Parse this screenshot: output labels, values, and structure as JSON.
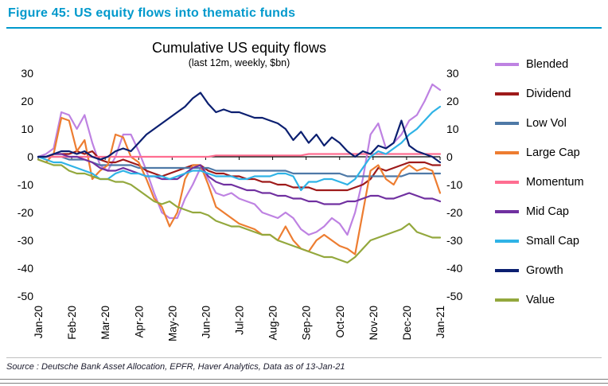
{
  "header": {
    "title": "Figure 45: US equity flows into thematic funds",
    "accent_color": "#0099CC"
  },
  "chart_data": {
    "type": "line",
    "title": "Cumulative US equity flows",
    "subtitle": "(last 12m, weekly, $bn)",
    "ylim": [
      -50,
      30
    ],
    "y_ticks": [
      30,
      20,
      10,
      0,
      -10,
      -20,
      -30,
      -40,
      -50
    ],
    "x_tick_labels": [
      "Jan-20",
      "Feb-20",
      "Mar-20",
      "Apr-20",
      "May-20",
      "Jun-20",
      "Jul-20",
      "Aug-20",
      "Sep-20",
      "Oct-20",
      "Nov-20",
      "Dec-20",
      "Jan-21"
    ],
    "x_weeks": 52,
    "grid": false,
    "legend_position": "right",
    "zero_line_color": "#000000",
    "series": [
      {
        "name": "Blended",
        "color": "#BE82E2",
        "values": [
          0,
          1,
          3,
          16,
          15,
          10,
          15,
          5,
          -3,
          -5,
          0,
          8,
          8,
          2,
          -5,
          -13,
          -20,
          -22,
          -22,
          -15,
          -10,
          -4,
          -8,
          -13,
          -14,
          -13,
          -15,
          -16,
          -17,
          -20,
          -21,
          -22,
          -20,
          -22,
          -26,
          -28,
          -27,
          -25,
          -22,
          -24,
          -28,
          -20,
          -8,
          8,
          12,
          3,
          5,
          8,
          13,
          15,
          20,
          26,
          24
        ]
      },
      {
        "name": "Dividend",
        "color": "#9E1A1A",
        "values": [
          0,
          0,
          1,
          1,
          1,
          2,
          1,
          2,
          -1,
          -2,
          -2,
          -1,
          -2,
          -3,
          -5,
          -6,
          -7,
          -6,
          -5,
          -4,
          -3,
          -3,
          -5,
          -6,
          -6,
          -7,
          -7,
          -8,
          -8,
          -9,
          -9,
          -10,
          -10,
          -11,
          -11,
          -11,
          -12,
          -12,
          -12,
          -12,
          -12,
          -11,
          -10,
          -8,
          -4,
          -5,
          -4,
          -3,
          -2,
          -2,
          -2,
          -3,
          -3
        ]
      },
      {
        "name": "Low Vol",
        "color": "#4E79A7",
        "values": [
          0,
          0,
          0,
          0,
          -1,
          -1,
          -1,
          -2,
          -3,
          -3,
          -3,
          -3,
          -3,
          -4,
          -4,
          -4,
          -4,
          -4,
          -4,
          -4,
          -4,
          -4,
          -4,
          -5,
          -5,
          -5,
          -5,
          -5,
          -5,
          -5,
          -5,
          -5,
          -5,
          -6,
          -6,
          -6,
          -6,
          -6,
          -6,
          -6,
          -7,
          -7,
          -7,
          -7,
          -7,
          -7,
          -7,
          -7,
          -6,
          -6,
          -6,
          -6,
          -6
        ]
      },
      {
        "name": "Large Cap",
        "color": "#ED7D31",
        "values": [
          -1,
          -2,
          1,
          14,
          13,
          2,
          6,
          -8,
          -5,
          -3,
          8,
          7,
          0,
          -2,
          -8,
          -15,
          -18,
          -25,
          -20,
          -8,
          -3,
          -3,
          -10,
          -18,
          -20,
          -22,
          -24,
          -25,
          -26,
          -28,
          -28,
          -30,
          -25,
          -30,
          -33,
          -34,
          -30,
          -28,
          -30,
          -32,
          -33,
          -35,
          -20,
          -5,
          -3,
          -8,
          -10,
          -5,
          -3,
          -5,
          -4,
          -5,
          -13
        ]
      },
      {
        "name": "Momentum",
        "color": "#FF6E91",
        "values": [
          0,
          0,
          0,
          0,
          0,
          0,
          0,
          0,
          0,
          0,
          0,
          0,
          0,
          0,
          0,
          0,
          0,
          0,
          0,
          0,
          0,
          0,
          0,
          0.5,
          0.5,
          0.5,
          0.5,
          0.5,
          0.5,
          0.5,
          0.5,
          0.5,
          0.5,
          0.5,
          0.5,
          1,
          1,
          1,
          1,
          1,
          1,
          1,
          1,
          1,
          1,
          1,
          1,
          1,
          1,
          1,
          1,
          1,
          1
        ]
      },
      {
        "name": "Mid Cap",
        "color": "#7030A0",
        "values": [
          0,
          0,
          1,
          1,
          0,
          0,
          -1,
          -2,
          -4,
          -5,
          -5,
          -4,
          -5,
          -6,
          -7,
          -7,
          -8,
          -8,
          -8,
          -6,
          -4,
          -3,
          -7,
          -9,
          -10,
          -10,
          -11,
          -12,
          -12,
          -13,
          -13,
          -14,
          -14,
          -15,
          -15,
          -16,
          -16,
          -17,
          -17,
          -17,
          -16,
          -16,
          -15,
          -14,
          -14,
          -15,
          -15,
          -14,
          -13,
          -14,
          -15,
          -15,
          -16
        ]
      },
      {
        "name": "Small Cap",
        "color": "#2FB3E6",
        "values": [
          0,
          -1,
          -2,
          -2,
          -3,
          -4,
          -5,
          -6,
          -8,
          -8,
          -6,
          -5,
          -6,
          -6,
          -7,
          -7,
          -7,
          -8,
          -7,
          -6,
          -5,
          -5,
          -6,
          -7,
          -7,
          -7,
          -8,
          -8,
          -7,
          -7,
          -7,
          -6,
          -6,
          -7,
          -12,
          -9,
          -9,
          -8,
          -8,
          -9,
          -10,
          -8,
          -4,
          0,
          2,
          1,
          3,
          5,
          8,
          10,
          13,
          16,
          18
        ]
      },
      {
        "name": "Growth",
        "color": "#0B1F70",
        "values": [
          0,
          0,
          1,
          2,
          2,
          1,
          2,
          0,
          -1,
          0,
          2,
          3,
          2,
          5,
          8,
          10,
          12,
          14,
          16,
          18,
          21,
          23,
          19,
          16,
          17,
          16,
          16,
          15,
          14,
          14,
          13,
          12,
          10,
          6,
          9,
          5,
          8,
          4,
          7,
          5,
          2,
          0,
          2,
          1,
          4,
          3,
          5,
          13,
          4,
          2,
          1,
          0,
          -2
        ]
      },
      {
        "name": "Value",
        "color": "#93A83D",
        "values": [
          -1,
          -2,
          -3,
          -3,
          -5,
          -6,
          -6,
          -7,
          -8,
          -8,
          -9,
          -9,
          -10,
          -12,
          -14,
          -16,
          -17,
          -16,
          -18,
          -19,
          -20,
          -20,
          -21,
          -23,
          -24,
          -25,
          -25,
          -26,
          -27,
          -28,
          -28,
          -30,
          -31,
          -32,
          -33,
          -34,
          -35,
          -36,
          -36,
          -37,
          -38,
          -36,
          -33,
          -30,
          -29,
          -28,
          -27,
          -26,
          -24,
          -27,
          -28,
          -29,
          -29
        ]
      }
    ]
  },
  "footer": {
    "source": "Source : Deutsche Bank Asset Allocation, EPFR, Haver Analytics, Data as of 13-Jan-21"
  }
}
